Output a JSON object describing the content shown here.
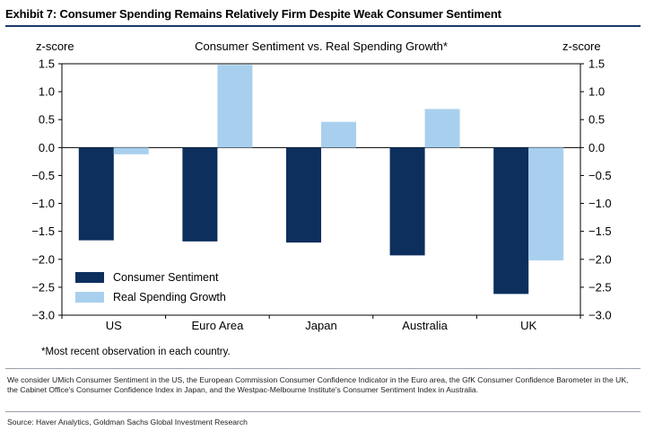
{
  "header": {
    "title": "Exhibit 7: Consumer Spending Remains Relatively Firm Despite Weak Consumer Sentiment"
  },
  "chart_data": {
    "type": "bar",
    "title": "Consumer Sentiment vs. Real Spending Growth*",
    "ylabel_left": "z-score",
    "ylabel_right": "z-score",
    "ylim": [
      -3.0,
      1.5
    ],
    "yticks": [
      1.5,
      1.0,
      0.5,
      0.0,
      -0.5,
      -1.0,
      -1.5,
      -2.0,
      -2.5,
      -3.0
    ],
    "ytick_labels": [
      "1.5",
      "1.0",
      "0.5",
      "0.0",
      "−0.5",
      "−1.0",
      "−1.5",
      "−2.0",
      "−2.5",
      "−3.0"
    ],
    "categories": [
      "US",
      "Euro Area",
      "Japan",
      "Australia",
      "UK"
    ],
    "series": [
      {
        "name": "Consumer Sentiment",
        "color": "#0d2f5e",
        "values": [
          -1.66,
          -1.68,
          -1.7,
          -1.93,
          -2.62
        ]
      },
      {
        "name": "Real Spending Growth",
        "color": "#a8d0ee",
        "values": [
          -0.12,
          1.48,
          0.46,
          0.69,
          -2.02
        ]
      }
    ],
    "legend_position": "bottom-left",
    "grid": false
  },
  "footnote": "*Most recent observation in each country.",
  "notes": "We consider UMich Consumer Sentiment in the US, the European Commission Consumer Confidence Indicator in the Euro area, the GfK Consumer Confidence Barometer in the UK, the Cabinet Office's Consumer Confidence Index in Japan, and the Westpac-Melbourne Institute's Consumer Sentiment Index in Australia.",
  "source": "Source: Haver Analytics, Goldman Sachs Global Investment Research"
}
